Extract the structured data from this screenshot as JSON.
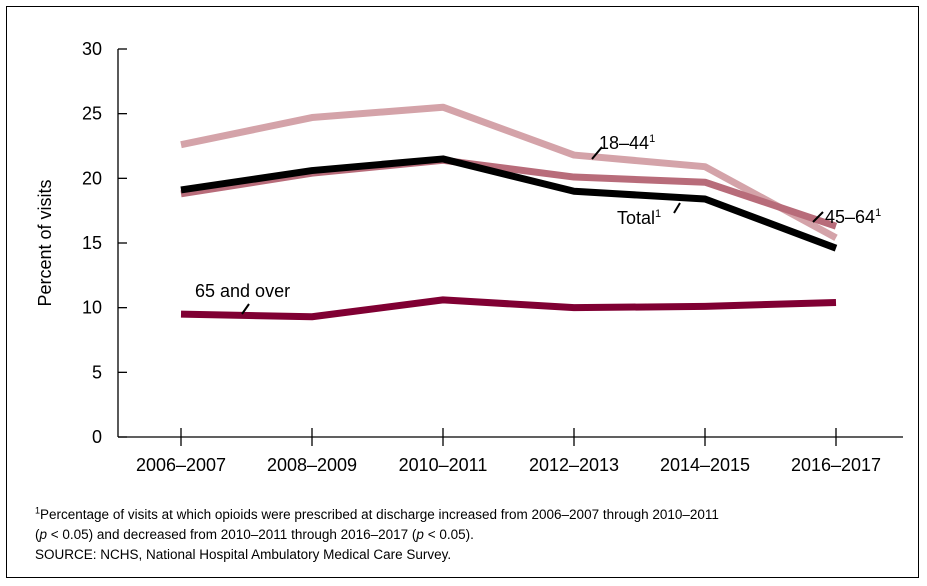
{
  "chart_data": {
    "type": "line",
    "categories": [
      "2006–2007",
      "2008–2009",
      "2010–2011",
      "2012–2013",
      "2014–2015",
      "2016–2017"
    ],
    "ylabel": "Percent of visits",
    "ylim": [
      0,
      30
    ],
    "yticks": [
      0,
      5,
      10,
      15,
      20,
      25,
      30
    ],
    "grid": false,
    "series": [
      {
        "name": "18–44",
        "superscript": "1",
        "color": "#d4a3a9",
        "values": [
          22.6,
          24.7,
          25.5,
          21.8,
          20.9,
          15.4
        ]
      },
      {
        "name": "45–64",
        "superscript": "1",
        "color": "#b86c7a",
        "values": [
          18.8,
          20.4,
          21.4,
          20.1,
          19.7,
          16.3
        ]
      },
      {
        "name": "Total",
        "superscript": "1",
        "color": "#000000",
        "values": [
          19.1,
          20.6,
          21.5,
          19.0,
          18.4,
          14.6
        ]
      },
      {
        "name": "65 and over",
        "superscript": "",
        "color": "#800033",
        "values": [
          9.5,
          9.3,
          10.6,
          10.0,
          10.1,
          10.4
        ]
      }
    ]
  },
  "footnote": {
    "marker": "1",
    "line1": "Percentage of visits at which opioids were prescribed at discharge increased from 2006–2007 through 2010–2011",
    "line2_p1": "p",
    "line2_t1": " < 0.05) and decreased from 2010–2011 through 2016–2017 (",
    "line2_p2": "p",
    "line2_t2": " < 0.05).",
    "source": "SOURCE: NCHS, National Hospital Ambulatory Medical Care Survey."
  }
}
